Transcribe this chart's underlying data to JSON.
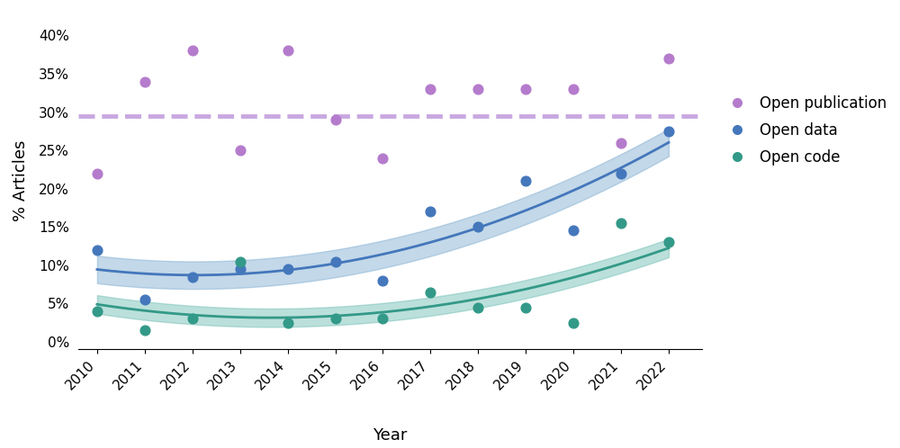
{
  "years": [
    2010,
    2011,
    2012,
    2013,
    2014,
    2015,
    2016,
    2017,
    2018,
    2019,
    2020,
    2021,
    2022
  ],
  "open_pub_dots": [
    22,
    34,
    38,
    25,
    38,
    29,
    24,
    33,
    33,
    33,
    33,
    26,
    37
  ],
  "open_data_dots": [
    12,
    5.5,
    8.5,
    9.5,
    9.5,
    10.5,
    8,
    17,
    15,
    21,
    14.5,
    22,
    27.5
  ],
  "open_code_dots": [
    4,
    1.5,
    3,
    10.5,
    2.5,
    3,
    3,
    6.5,
    4.5,
    4.5,
    2.5,
    15.5,
    13
  ],
  "open_pub_color": "#b57bcc",
  "open_data_color": "#4477bb",
  "open_code_color": "#339988",
  "open_data_fill_color": "#7aaacf",
  "open_code_fill_color": "#6abbb0",
  "dashed_line_y": 29.5,
  "dashed_color": "#c9a8e0",
  "ylabel": "% Articles",
  "xlabel": "Year",
  "ylim": [
    -1,
    43
  ],
  "yticks": [
    0,
    5,
    10,
    15,
    20,
    25,
    30,
    35,
    40
  ],
  "ytick_labels": [
    "0%",
    "5%",
    "10%",
    "15%",
    "20%",
    "25%",
    "30%",
    "35%",
    "40%"
  ],
  "legend_labels": [
    "Open publication",
    "Open data",
    "Open code"
  ],
  "background_color": "#ffffff",
  "open_data_band": 1.8,
  "open_code_band": 1.2
}
